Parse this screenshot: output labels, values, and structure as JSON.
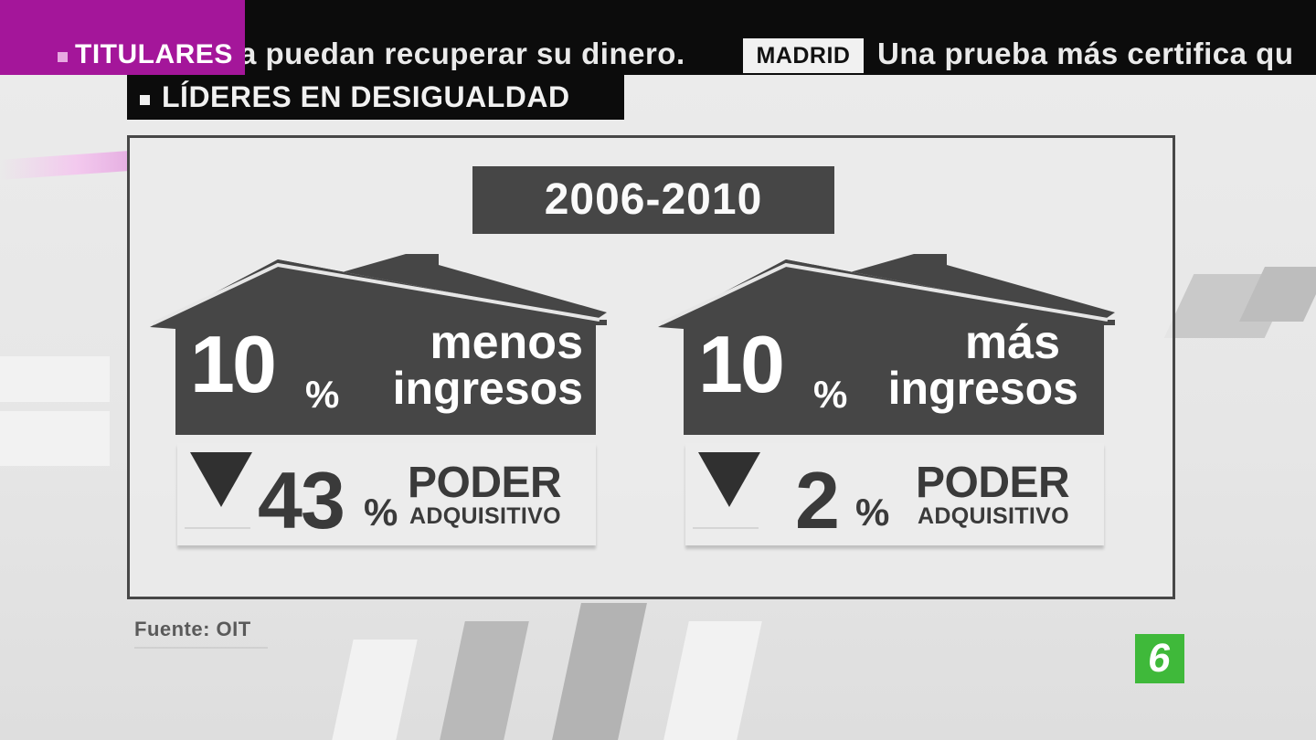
{
  "ticker": {
    "section_label": "TITULARES",
    "text_1": "a puedan recuperar su dinero.",
    "tag": "MADRID",
    "text_2": "Una prueba más certifica qu"
  },
  "section": {
    "title": "LÍDERES EN DESIGUALDAD"
  },
  "period": "2006-2010",
  "groups": [
    {
      "value": "10",
      "unit": "%",
      "line1": "menos",
      "line2": "ingresos",
      "change_value": "43",
      "change_unit": "%",
      "change_title": "PODER",
      "change_sub": "ADQUISITIVO",
      "change_direction": "down"
    },
    {
      "value": "10",
      "unit": "%",
      "line1": "más",
      "line2": "ingresos",
      "change_value": "2",
      "change_unit": "%",
      "change_title": "PODER",
      "change_sub": "ADQUISITIVO",
      "change_direction": "down"
    }
  ],
  "source": "Fuente: OIT",
  "channel_logo": "6",
  "colors": {
    "accent": "#a4169a",
    "ticker_bg": "#0c0c0c",
    "house": "#464646",
    "logo": "#3fb93a"
  }
}
